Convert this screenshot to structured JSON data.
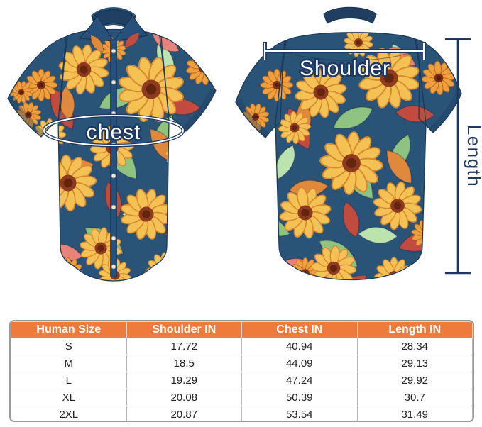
{
  "diagram": {
    "chest_label": "chest",
    "shoulder_label": "Shoulder",
    "length_label": "Length"
  },
  "size_table": {
    "headers": [
      "Human Size",
      "Shoulder IN",
      "Chest IN",
      "Length IN"
    ],
    "rows": [
      [
        "S",
        "17.72",
        "40.94",
        "28.34"
      ],
      [
        "M",
        "18.5",
        "44.09",
        "29.13"
      ],
      [
        "L",
        "19.29",
        "47.24",
        "29.92"
      ],
      [
        "XL",
        "20.08",
        "50.39",
        "30.7"
      ],
      [
        "2XL",
        "20.87",
        "53.54",
        "31.49"
      ]
    ]
  },
  "colors": {
    "table_header_bg": "#EE7A3C",
    "annotation_navy": "#1D3864",
    "shirt_navy": "#2A5378",
    "table_border": "#9A9A9A"
  }
}
